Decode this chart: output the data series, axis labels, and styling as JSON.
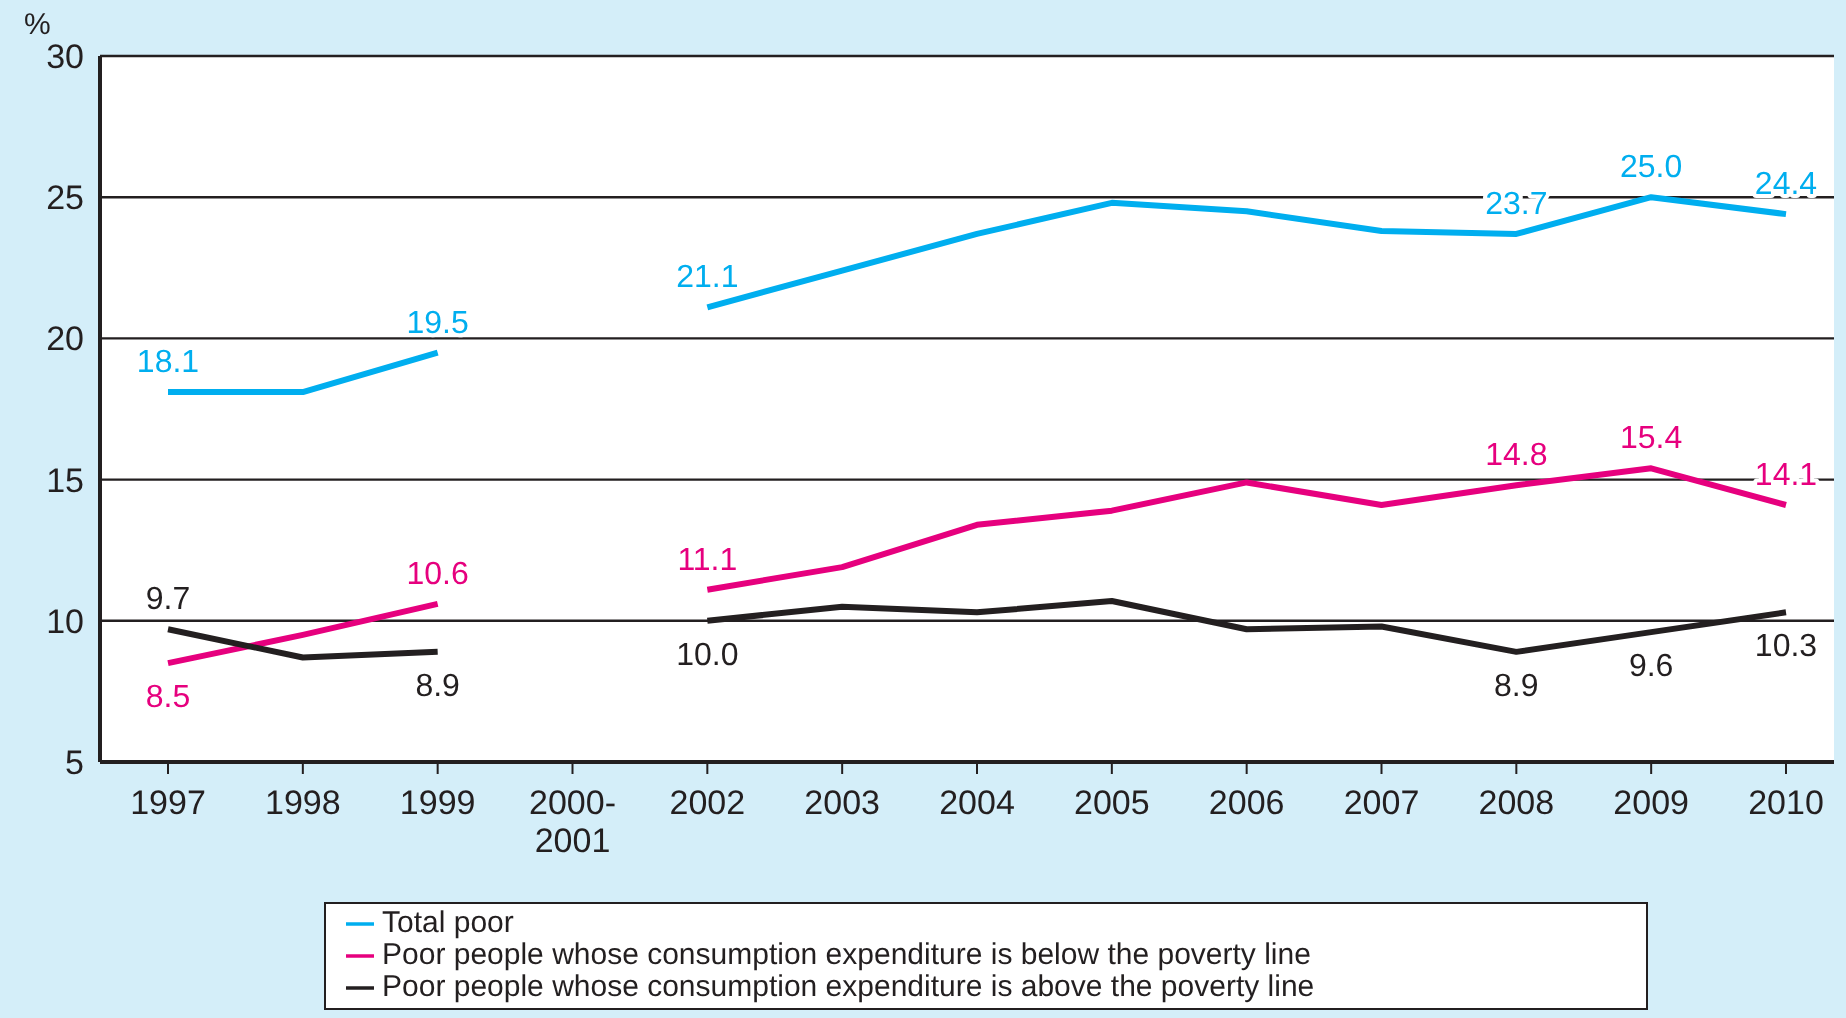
{
  "chart_data": {
    "type": "line",
    "ylabel": "%",
    "categories": [
      "1997",
      "1998",
      "1999",
      "2000-\n2001",
      "2002",
      "2003",
      "2004",
      "2005",
      "2006",
      "2007",
      "2008",
      "2009",
      "2010"
    ],
    "ylim": [
      5,
      30
    ],
    "yticks": [
      5,
      10,
      15,
      20,
      25,
      30
    ],
    "grid": "y",
    "legend": "bottom",
    "marker": "none",
    "line_style": "solid",
    "series": [
      {
        "name": "Total poor",
        "color": "#00aeef",
        "values": [
          18.1,
          18.1,
          19.5,
          null,
          21.1,
          22.4,
          23.7,
          24.8,
          24.5,
          23.8,
          23.7,
          25.0,
          24.4
        ],
        "value_labels": [
          "18.1",
          null,
          "19.5",
          null,
          "21.1",
          null,
          null,
          null,
          null,
          null,
          "23.7",
          "25.0",
          "24.4"
        ]
      },
      {
        "name": "Poor people whose consumption expenditure is below the poverty line",
        "color": "#e6007e",
        "values": [
          8.5,
          9.5,
          10.6,
          null,
          11.1,
          11.9,
          13.4,
          13.9,
          14.9,
          14.1,
          14.8,
          15.4,
          14.1
        ],
        "value_labels": [
          "8.5",
          null,
          "10.6",
          null,
          "11.1",
          null,
          null,
          null,
          null,
          null,
          "14.8",
          "15.4",
          "14.1"
        ]
      },
      {
        "name": "Poor people whose consumption expenditure is above the poverty line",
        "color": "#231f20",
        "values": [
          9.7,
          8.7,
          8.9,
          null,
          10.0,
          10.5,
          10.3,
          10.7,
          9.7,
          9.8,
          8.9,
          9.6,
          10.3
        ],
        "value_labels": [
          "9.7",
          null,
          "8.9",
          null,
          "10.0",
          null,
          null,
          null,
          null,
          null,
          "8.9",
          "9.6",
          "10.3"
        ]
      }
    ]
  }
}
